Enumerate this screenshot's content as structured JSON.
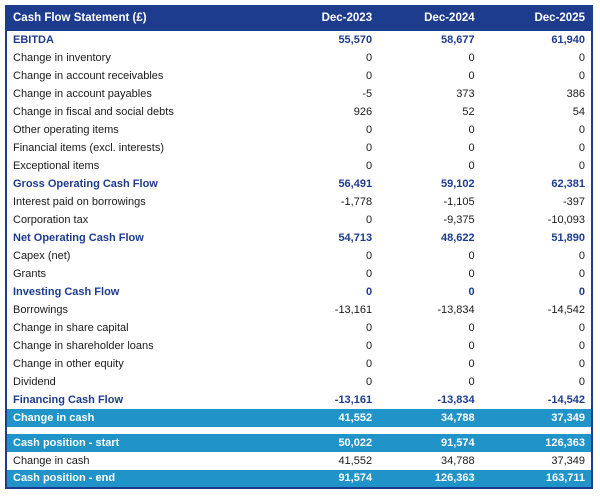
{
  "table": {
    "title": "Cash Flow Statement (£)",
    "columns": [
      "Dec-2023",
      "Dec-2024",
      "Dec-2025"
    ],
    "rows": [
      {
        "type": "section",
        "label": "EBITDA",
        "values": [
          "55,570",
          "58,677",
          "61,940"
        ]
      },
      {
        "type": "item",
        "label": "Change in inventory",
        "values": [
          "0",
          "0",
          "0"
        ]
      },
      {
        "type": "item",
        "label": "Change in account receivables",
        "values": [
          "0",
          "0",
          "0"
        ]
      },
      {
        "type": "item",
        "label": "Change in account payables",
        "values": [
          "-5",
          "373",
          "386"
        ]
      },
      {
        "type": "item",
        "label": "Change in fiscal and social debts",
        "values": [
          "926",
          "52",
          "54"
        ]
      },
      {
        "type": "item",
        "label": "Other operating items",
        "values": [
          "0",
          "0",
          "0"
        ]
      },
      {
        "type": "item",
        "label": "Financial items (excl. interests)",
        "values": [
          "0",
          "0",
          "0"
        ]
      },
      {
        "type": "item",
        "label": "Exceptional items",
        "values": [
          "0",
          "0",
          "0"
        ]
      },
      {
        "type": "section",
        "label": "Gross Operating Cash Flow",
        "values": [
          "56,491",
          "59,102",
          "62,381"
        ]
      },
      {
        "type": "item",
        "label": "Interest paid on borrowings",
        "values": [
          "-1,778",
          "-1,105",
          "-397"
        ]
      },
      {
        "type": "item",
        "label": "Corporation tax",
        "values": [
          "0",
          "-9,375",
          "-10,093"
        ]
      },
      {
        "type": "section",
        "label": "Net Operating Cash Flow",
        "values": [
          "54,713",
          "48,622",
          "51,890"
        ]
      },
      {
        "type": "item",
        "label": "Capex (net)",
        "values": [
          "0",
          "0",
          "0"
        ]
      },
      {
        "type": "item",
        "label": "Grants",
        "values": [
          "0",
          "0",
          "0"
        ]
      },
      {
        "type": "section",
        "label": "Investing Cash Flow",
        "values": [
          "0",
          "0",
          "0"
        ]
      },
      {
        "type": "item",
        "label": "Borrowings",
        "values": [
          "-13,161",
          "-13,834",
          "-14,542"
        ]
      },
      {
        "type": "item",
        "label": "Change in share capital",
        "values": [
          "0",
          "0",
          "0"
        ]
      },
      {
        "type": "item",
        "label": "Change in shareholder loans",
        "values": [
          "0",
          "0",
          "0"
        ]
      },
      {
        "type": "item",
        "label": "Change in other equity",
        "values": [
          "0",
          "0",
          "0"
        ]
      },
      {
        "type": "item",
        "label": "Dividend",
        "values": [
          "0",
          "0",
          "0"
        ]
      },
      {
        "type": "section",
        "label": "Financing Cash Flow",
        "values": [
          "-13,161",
          "-13,834",
          "-14,542"
        ]
      },
      {
        "type": "highlight",
        "label": "Change in cash",
        "values": [
          "41,552",
          "34,788",
          "37,349"
        ]
      },
      {
        "type": "spacer",
        "label": "",
        "values": []
      },
      {
        "type": "highlight",
        "label": "Cash position - start",
        "values": [
          "50,022",
          "91,574",
          "126,363"
        ]
      },
      {
        "type": "item",
        "label": "Change in cash",
        "values": [
          "41,552",
          "34,788",
          "37,349"
        ]
      },
      {
        "type": "highlight",
        "label": "Cash position - end",
        "values": [
          "91,574",
          "126,363",
          "163,711"
        ]
      }
    ]
  },
  "colors": {
    "navy": "#1e3c8e",
    "cyan": "#2094c8",
    "text": "#1a1a1a"
  }
}
